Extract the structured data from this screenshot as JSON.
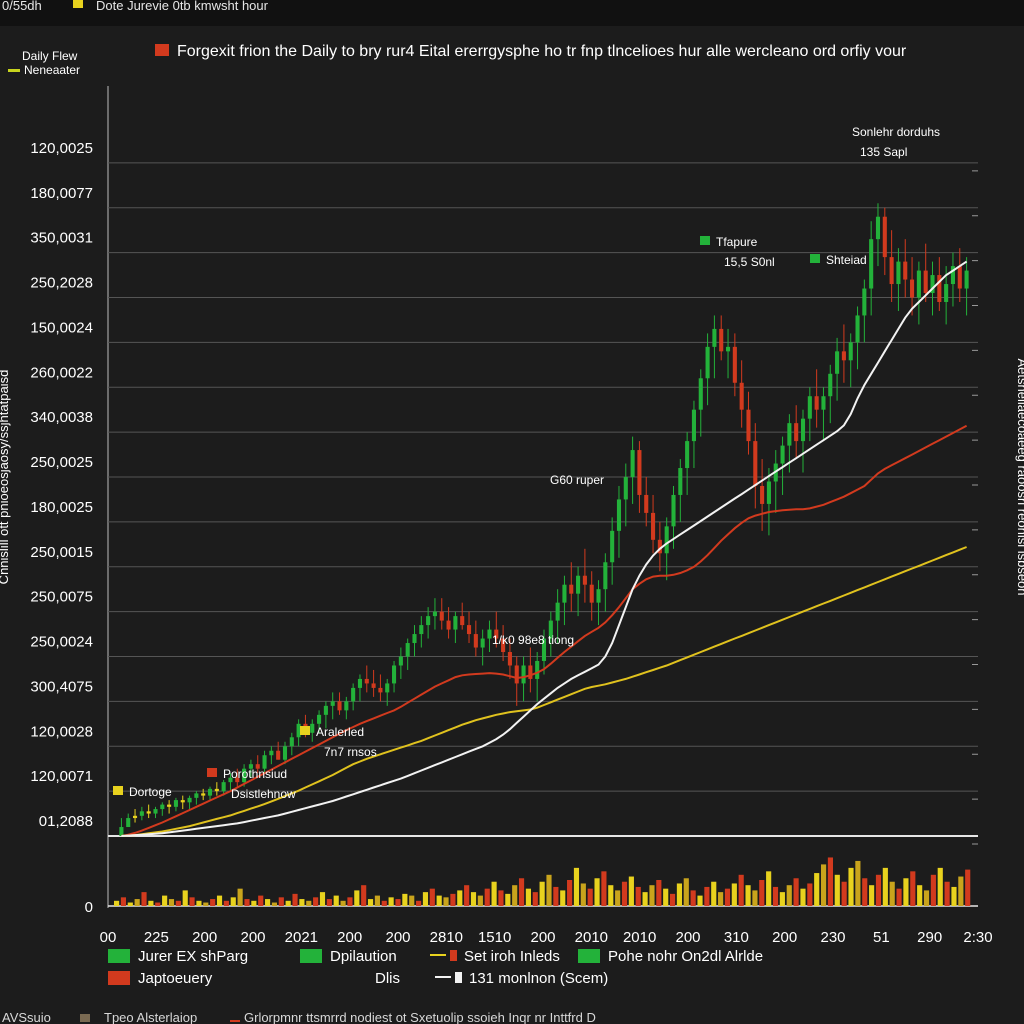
{
  "topbar": {
    "left_text": "0/55dh",
    "title": "Dote Jurevie 0tb kmwsht hour"
  },
  "bottombar": {
    "left_text": "AVSsuio",
    "middle_text": "Tpeo Alsterlaiop",
    "right_text": "Grlorpmnr ttsmrrd nodiest ot Sxetuolip ssoieh Inqr nr Inttfrd D"
  },
  "chart_data": {
    "type": "candlestick",
    "title": "Forgexit frion the Daily to bry rur4 Eital ererrgysphe ho tr fnp tlncelioes hur alle wercleano ord orfiy vour",
    "title_marker_color": "#d23a1e",
    "top_left_legend": {
      "line1": "Daily Flew",
      "line2": "Neneaater",
      "marker_color": "#c8d41e"
    },
    "ylabel_left": "Cnnislill ott pnioeosjaosy/ssjhtatpaisd",
    "ylabel_right": "Aetsneliaecoaeeg raoosri reonlsl isbseon",
    "y_tick_labels": [
      "120,0025",
      "180,0077",
      "350,0031",
      "250,2028",
      "150,0024",
      "260,0022",
      "340,0038",
      "250,0025",
      "180,0025",
      "250,0015",
      "250,0075",
      "250,0024",
      "300,4075",
      "120,0028",
      "120,0071",
      "01,2088"
    ],
    "volume_zero_label": "0",
    "x_tick_labels": [
      "00",
      "225",
      "200",
      "200",
      "2021",
      "200",
      "200",
      "2810",
      "1510",
      "200",
      "2010",
      "2010",
      "200",
      "310",
      "200",
      "230",
      "51",
      "290",
      "2:30"
    ],
    "ylim": [
      0,
      16
    ],
    "price_candles": [
      [
        0.0,
        0.05,
        0.4,
        0.2
      ],
      [
        0.2,
        0.3,
        0.5,
        0.4
      ],
      [
        0.4,
        0.3,
        0.6,
        0.45
      ],
      [
        0.45,
        0.35,
        0.65,
        0.55
      ],
      [
        0.55,
        0.4,
        0.7,
        0.5
      ],
      [
        0.5,
        0.4,
        0.65,
        0.6
      ],
      [
        0.6,
        0.45,
        0.75,
        0.7
      ],
      [
        0.7,
        0.5,
        0.8,
        0.65
      ],
      [
        0.65,
        0.55,
        0.85,
        0.8
      ],
      [
        0.8,
        0.6,
        0.9,
        0.75
      ],
      [
        0.75,
        0.6,
        0.9,
        0.85
      ],
      [
        0.85,
        0.7,
        1.0,
        0.95
      ],
      [
        0.95,
        0.8,
        1.05,
        0.9
      ],
      [
        0.9,
        0.8,
        1.1,
        1.05
      ],
      [
        1.05,
        0.9,
        1.2,
        1.0
      ],
      [
        1.0,
        0.9,
        1.25,
        1.2
      ],
      [
        1.2,
        1.0,
        1.4,
        1.3
      ],
      [
        1.3,
        1.1,
        1.5,
        1.2
      ],
      [
        1.2,
        1.1,
        1.6,
        1.5
      ],
      [
        1.5,
        1.3,
        1.7,
        1.6
      ],
      [
        1.6,
        1.4,
        1.8,
        1.5
      ],
      [
        1.5,
        1.4,
        1.9,
        1.8
      ],
      [
        1.8,
        1.6,
        2.0,
        1.9
      ],
      [
        1.9,
        1.7,
        2.1,
        1.7
      ],
      [
        1.7,
        1.6,
        2.1,
        2.0
      ],
      [
        2.0,
        1.8,
        2.3,
        2.2
      ],
      [
        2.2,
        2.0,
        2.6,
        2.5
      ],
      [
        2.5,
        2.2,
        2.7,
        2.3
      ],
      [
        2.3,
        2.1,
        2.6,
        2.5
      ],
      [
        2.5,
        2.3,
        2.8,
        2.7
      ],
      [
        2.7,
        2.4,
        3.0,
        2.9
      ],
      [
        2.9,
        2.6,
        3.2,
        3.0
      ],
      [
        3.0,
        2.7,
        3.2,
        2.8
      ],
      [
        2.8,
        2.6,
        3.1,
        3.0
      ],
      [
        3.0,
        2.8,
        3.4,
        3.3
      ],
      [
        3.3,
        3.0,
        3.6,
        3.5
      ],
      [
        3.5,
        3.2,
        3.8,
        3.4
      ],
      [
        3.4,
        3.1,
        3.7,
        3.3
      ],
      [
        3.3,
        3.0,
        3.6,
        3.2
      ],
      [
        3.2,
        2.9,
        3.5,
        3.4
      ],
      [
        3.4,
        3.2,
        3.9,
        3.8
      ],
      [
        3.8,
        3.5,
        4.2,
        4.0
      ],
      [
        4.0,
        3.7,
        4.4,
        4.3
      ],
      [
        4.3,
        4.0,
        4.7,
        4.5
      ],
      [
        4.5,
        4.2,
        4.9,
        4.7
      ],
      [
        4.7,
        4.4,
        5.1,
        4.9
      ],
      [
        4.9,
        4.6,
        5.3,
        5.0
      ],
      [
        5.0,
        4.6,
        5.3,
        4.8
      ],
      [
        4.8,
        4.4,
        5.1,
        4.6
      ],
      [
        4.6,
        4.3,
        5.0,
        4.9
      ],
      [
        4.9,
        4.6,
        5.2,
        4.7
      ],
      [
        4.7,
        4.3,
        5.0,
        4.5
      ],
      [
        4.5,
        4.0,
        4.8,
        4.2
      ],
      [
        4.2,
        3.8,
        4.6,
        4.4
      ],
      [
        4.4,
        4.1,
        4.8,
        4.6
      ],
      [
        4.6,
        4.2,
        5.0,
        4.4
      ],
      [
        4.4,
        3.9,
        4.7,
        4.1
      ],
      [
        4.1,
        3.5,
        4.4,
        3.8
      ],
      [
        3.8,
        2.9,
        4.0,
        3.4
      ],
      [
        3.4,
        3.0,
        4.0,
        3.8
      ],
      [
        3.8,
        3.2,
        4.2,
        3.5
      ],
      [
        3.5,
        3.0,
        4.1,
        3.9
      ],
      [
        3.9,
        3.6,
        4.6,
        4.4
      ],
      [
        4.4,
        4.0,
        5.0,
        4.8
      ],
      [
        4.8,
        4.3,
        5.5,
        5.2
      ],
      [
        5.2,
        4.7,
        5.8,
        5.6
      ],
      [
        5.6,
        5.0,
        6.1,
        5.4
      ],
      [
        5.4,
        4.9,
        6.0,
        5.8
      ],
      [
        5.8,
        5.2,
        6.4,
        5.6
      ],
      [
        5.6,
        4.8,
        5.9,
        5.2
      ],
      [
        5.2,
        4.7,
        5.7,
        5.5
      ],
      [
        5.5,
        5.0,
        6.3,
        6.1
      ],
      [
        6.1,
        5.6,
        7.1,
        6.8
      ],
      [
        6.8,
        6.2,
        7.8,
        7.5
      ],
      [
        7.5,
        6.9,
        8.3,
        8.0
      ],
      [
        8.0,
        7.4,
        8.9,
        8.6
      ],
      [
        8.6,
        7.2,
        8.8,
        7.6
      ],
      [
        7.6,
        6.9,
        8.0,
        7.2
      ],
      [
        7.2,
        6.3,
        7.6,
        6.6
      ],
      [
        6.6,
        5.9,
        7.0,
        6.3
      ],
      [
        6.3,
        5.7,
        7.1,
        6.9
      ],
      [
        6.9,
        6.4,
        7.8,
        7.6
      ],
      [
        7.6,
        7.0,
        8.4,
        8.2
      ],
      [
        8.2,
        7.6,
        9.0,
        8.8
      ],
      [
        8.8,
        8.2,
        9.7,
        9.5
      ],
      [
        9.5,
        8.9,
        10.4,
        10.2
      ],
      [
        10.2,
        9.6,
        11.2,
        10.9
      ],
      [
        10.9,
        10.2,
        11.6,
        11.3
      ],
      [
        11.3,
        10.6,
        11.6,
        10.8
      ],
      [
        10.8,
        10.2,
        11.3,
        10.9
      ],
      [
        10.9,
        9.8,
        11.2,
        10.1
      ],
      [
        10.1,
        9.1,
        10.6,
        9.5
      ],
      [
        9.5,
        8.5,
        9.9,
        8.8
      ],
      [
        8.8,
        7.3,
        9.2,
        7.8
      ],
      [
        7.8,
        6.8,
        8.4,
        7.4
      ],
      [
        7.4,
        6.7,
        8.2,
        7.9
      ],
      [
        7.9,
        7.2,
        8.6,
        8.3
      ],
      [
        8.3,
        7.6,
        8.9,
        8.7
      ],
      [
        8.7,
        8.1,
        9.4,
        9.2
      ],
      [
        9.2,
        8.4,
        9.6,
        8.8
      ],
      [
        8.8,
        8.1,
        9.5,
        9.3
      ],
      [
        9.3,
        8.8,
        10.0,
        9.8
      ],
      [
        9.8,
        9.1,
        10.4,
        9.5
      ],
      [
        9.5,
        8.8,
        10.0,
        9.8
      ],
      [
        9.8,
        9.2,
        10.5,
        10.3
      ],
      [
        10.3,
        9.7,
        11.1,
        10.8
      ],
      [
        10.8,
        10.1,
        11.4,
        10.6
      ],
      [
        10.6,
        10.0,
        11.2,
        11.0
      ],
      [
        11.0,
        10.4,
        11.8,
        11.6
      ],
      [
        11.6,
        11.0,
        12.4,
        12.2
      ],
      [
        12.2,
        11.6,
        13.7,
        13.3
      ],
      [
        13.3,
        12.7,
        14.1,
        13.8
      ],
      [
        13.8,
        12.5,
        14.0,
        12.9
      ],
      [
        12.9,
        11.9,
        13.5,
        12.3
      ],
      [
        12.3,
        11.7,
        13.1,
        12.8
      ],
      [
        12.8,
        12.0,
        13.3,
        12.4
      ],
      [
        12.4,
        11.6,
        12.9,
        12.0
      ],
      [
        12.0,
        11.4,
        12.8,
        12.6
      ],
      [
        12.6,
        11.9,
        13.2,
        12.1
      ],
      [
        12.1,
        11.6,
        12.8,
        12.5
      ],
      [
        12.5,
        11.7,
        12.9,
        11.9
      ],
      [
        11.9,
        11.4,
        12.7,
        12.3
      ],
      [
        12.3,
        11.8,
        13.0,
        12.7
      ],
      [
        12.7,
        11.9,
        13.1,
        12.2
      ],
      [
        12.2,
        11.6,
        12.9,
        12.6
      ]
    ],
    "moving_averages": [
      {
        "color": "#d23a1e",
        "values": [
          0.0,
          0.03,
          0.07,
          0.12,
          0.18,
          0.24,
          0.3,
          0.37,
          0.44,
          0.51,
          0.58,
          0.65,
          0.72,
          0.79,
          0.86,
          0.93,
          1.0,
          1.08,
          1.16,
          1.24,
          1.32,
          1.4,
          1.48,
          1.56,
          1.64,
          1.72,
          1.8,
          1.88,
          1.96,
          2.04,
          2.12,
          2.2,
          2.28,
          2.36,
          2.43,
          2.5,
          2.56,
          2.62,
          2.68,
          2.74,
          2.8,
          2.88,
          2.97,
          3.06,
          3.15,
          3.24,
          3.33,
          3.4,
          3.47,
          3.54,
          3.58,
          3.6,
          3.61,
          3.62,
          3.63,
          3.62,
          3.6,
          3.56,
          3.52,
          3.54,
          3.58,
          3.64,
          3.72,
          3.84,
          3.97,
          4.1,
          4.22,
          4.34,
          4.46,
          4.55,
          4.64,
          4.76,
          4.92,
          5.1,
          5.3,
          5.5,
          5.62,
          5.72,
          5.78,
          5.8,
          5.8,
          5.82,
          5.86,
          5.92,
          6.0,
          6.12,
          6.26,
          6.42,
          6.58,
          6.72,
          6.86,
          6.98,
          7.08,
          7.14,
          7.18,
          7.22,
          7.24,
          7.26,
          7.27,
          7.28,
          7.28,
          7.3,
          7.34,
          7.38,
          7.44,
          7.5,
          7.56,
          7.64,
          7.72,
          7.8,
          7.94,
          8.08,
          8.18,
          8.26,
          8.34,
          8.42,
          8.5,
          8.58,
          8.66,
          8.74,
          8.82,
          8.9,
          8.98,
          9.06,
          9.14
        ]
      },
      {
        "color": "#e0c21e",
        "values": [
          0.0,
          0.01,
          0.02,
          0.04,
          0.06,
          0.08,
          0.1,
          0.13,
          0.16,
          0.19,
          0.22,
          0.26,
          0.3,
          0.34,
          0.38,
          0.42,
          0.46,
          0.51,
          0.56,
          0.61,
          0.66,
          0.71,
          0.77,
          0.83,
          0.89,
          0.95,
          1.01,
          1.08,
          1.15,
          1.22,
          1.29,
          1.36,
          1.44,
          1.52,
          1.6,
          1.66,
          1.72,
          1.77,
          1.82,
          1.87,
          1.92,
          1.97,
          2.02,
          2.07,
          2.12,
          2.18,
          2.24,
          2.3,
          2.36,
          2.42,
          2.48,
          2.53,
          2.58,
          2.62,
          2.66,
          2.7,
          2.73,
          2.76,
          2.78,
          2.8,
          2.82,
          2.86,
          2.92,
          2.98,
          3.04,
          3.1,
          3.16,
          3.22,
          3.28,
          3.32,
          3.35,
          3.38,
          3.42,
          3.46,
          3.5,
          3.55,
          3.6,
          3.65,
          3.7,
          3.75,
          3.8,
          3.86,
          3.92,
          3.98,
          4.04,
          4.1,
          4.16,
          4.22,
          4.28,
          4.34,
          4.4,
          4.46,
          4.52,
          4.58,
          4.64,
          4.7,
          4.76,
          4.82,
          4.88,
          4.94,
          5.0,
          5.06,
          5.12,
          5.18,
          5.24,
          5.3,
          5.36,
          5.42,
          5.48,
          5.54,
          5.6,
          5.66,
          5.72,
          5.78,
          5.84,
          5.9,
          5.96,
          6.02,
          6.08,
          6.14,
          6.2,
          6.26,
          6.32,
          6.38,
          6.44
        ]
      },
      {
        "color": "#f2f2f2",
        "values": [
          0.0,
          0.01,
          0.02,
          0.03,
          0.04,
          0.05,
          0.06,
          0.08,
          0.1,
          0.12,
          0.14,
          0.16,
          0.18,
          0.2,
          0.22,
          0.24,
          0.26,
          0.28,
          0.31,
          0.34,
          0.37,
          0.4,
          0.43,
          0.46,
          0.5,
          0.54,
          0.58,
          0.62,
          0.66,
          0.7,
          0.74,
          0.78,
          0.83,
          0.88,
          0.93,
          0.98,
          1.03,
          1.08,
          1.13,
          1.18,
          1.23,
          1.28,
          1.34,
          1.4,
          1.46,
          1.52,
          1.58,
          1.64,
          1.7,
          1.76,
          1.82,
          1.88,
          1.94,
          2.0,
          2.08,
          2.16,
          2.26,
          2.38,
          2.52,
          2.66,
          2.8,
          2.94,
          3.06,
          3.18,
          3.3,
          3.4,
          3.5,
          3.58,
          3.66,
          3.74,
          3.82,
          4.0,
          4.3,
          4.7,
          5.1,
          5.5,
          5.8,
          6.05,
          6.25,
          6.4,
          6.52,
          6.62,
          6.72,
          6.82,
          6.92,
          7.02,
          7.12,
          7.22,
          7.32,
          7.42,
          7.52,
          7.62,
          7.72,
          7.82,
          7.92,
          8.02,
          8.12,
          8.22,
          8.32,
          8.42,
          8.52,
          8.62,
          8.72,
          8.82,
          8.92,
          9.02,
          9.15,
          9.4,
          9.75,
          10.05,
          10.3,
          10.55,
          10.8,
          11.05,
          11.3,
          11.55,
          11.75,
          11.9,
          12.05,
          12.2,
          12.35,
          12.5,
          12.6,
          12.7,
          12.8
        ]
      }
    ],
    "volume": [
      3,
      5,
      2,
      4,
      8,
      3,
      2,
      6,
      4,
      3,
      9,
      5,
      3,
      2,
      4,
      6,
      3,
      5,
      10,
      4,
      3,
      6,
      4,
      2,
      5,
      3,
      7,
      4,
      3,
      5,
      8,
      4,
      6,
      3,
      5,
      9,
      12,
      4,
      6,
      3,
      5,
      4,
      7,
      6,
      3,
      8,
      10,
      6,
      5,
      7,
      9,
      12,
      8,
      6,
      10,
      14,
      9,
      7,
      12,
      16,
      10,
      8,
      14,
      18,
      11,
      9,
      15,
      22,
      13,
      10,
      16,
      20,
      12,
      9,
      14,
      17,
      11,
      8,
      12,
      15,
      10,
      7,
      13,
      16,
      9,
      6,
      11,
      14,
      8,
      10,
      13,
      18,
      12,
      9,
      15,
      20,
      11,
      8,
      12,
      16,
      10,
      13,
      19,
      24,
      28,
      18,
      14,
      22,
      26,
      16,
      12,
      18,
      22,
      14,
      10,
      16,
      20,
      12,
      9,
      18,
      22,
      14,
      11,
      17,
      21
    ],
    "volume_ylim": [
      0,
      30
    ],
    "annotations": [
      {
        "line1": "Sonlehr dorduhs",
        "line2": "135 Sapl",
        "marker_color": null
      },
      {
        "line1": "Tfapure",
        "line2": "15,5 S0nl",
        "marker_color": "#23b23a"
      },
      {
        "line1": "Shteiad",
        "line2": "",
        "marker_color": "#23b23a"
      },
      {
        "line1": "G60 ruper",
        "line2": "",
        "marker_color": null
      },
      {
        "line1": "1/k0 98e8 tiong",
        "line2": "",
        "marker_color": null
      },
      {
        "line1": "Aralerled",
        "line2": "7n7 rnsos",
        "marker_color": "#e8d21e"
      },
      {
        "line1": "Porothnsiud",
        "line2": "Dsistlehnow",
        "marker_color": "#d23a1e"
      },
      {
        "line1": "Dortoge",
        "line2": "",
        "marker_color": "#e8d21e"
      }
    ],
    "legend": [
      {
        "label": "Jurer EX shParg",
        "kind": "box",
        "color": "#23b23a"
      },
      {
        "label": "Dpilaution",
        "kind": "box",
        "color": "#23b23a"
      },
      {
        "label": "Set iroh Inleds",
        "kind": "linebox",
        "color": "#e8d21e",
        "color2": "#d23a1e"
      },
      {
        "label": "Pohe nohr On2dl Alrlde",
        "kind": "box",
        "color": "#23b23a"
      },
      {
        "label": "Japtoeuery",
        "kind": "box",
        "color": "#d23a1e"
      },
      {
        "label": "Dlis",
        "kind": "none",
        "color": ""
      },
      {
        "label": "131 monlnon (Scem)",
        "kind": "linebox",
        "color": "#f2f2f2",
        "color2": "#f2f2f2"
      }
    ],
    "colors": {
      "up": "#23b23a",
      "down": "#d23a1e",
      "neutral": "#e8d21e",
      "grid": "#555555",
      "background": "#1c1c1c",
      "text": "#ffffff"
    },
    "grid": true,
    "legend_position": "bottom-left"
  }
}
